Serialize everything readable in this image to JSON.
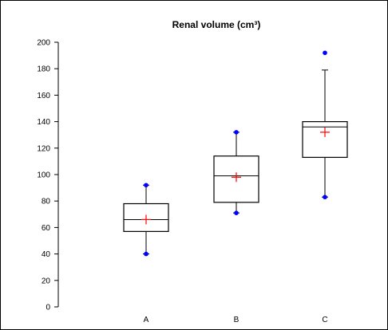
{
  "chart_data": {
    "type": "box",
    "title": "Renal volume (cm³)",
    "xlabel": "",
    "ylabel": "",
    "ylim": [
      0,
      200
    ],
    "yticks": [
      0,
      20,
      40,
      60,
      80,
      100,
      120,
      140,
      160,
      180,
      200
    ],
    "ytick_labels": [
      "0",
      "20",
      "40",
      "60",
      "80",
      "100",
      "120",
      "140",
      "160",
      "180",
      "200"
    ],
    "categories": [
      "A",
      "B",
      "C"
    ],
    "boxes": [
      {
        "category": "A",
        "whisker_low": 40,
        "q1": 57,
        "median": 66,
        "q3": 78,
        "whisker_high": 92,
        "mean": 66,
        "outliers": [
          40,
          92
        ]
      },
      {
        "category": "B",
        "whisker_low": 71,
        "q1": 79,
        "median": 99,
        "q3": 114,
        "whisker_high": 132,
        "mean": 98,
        "outliers": [
          71,
          132
        ]
      },
      {
        "category": "C",
        "whisker_low": 83,
        "q1": 113,
        "median": 136,
        "q3": 140,
        "whisker_high": 179,
        "mean": 132,
        "outliers": [
          83,
          192
        ]
      }
    ],
    "colors": {
      "box_stroke": "#000000",
      "mean_marker": "#ff0000",
      "outlier_marker": "#0000ff",
      "frame": "#000000"
    },
    "grid": false,
    "legend": "none"
  }
}
